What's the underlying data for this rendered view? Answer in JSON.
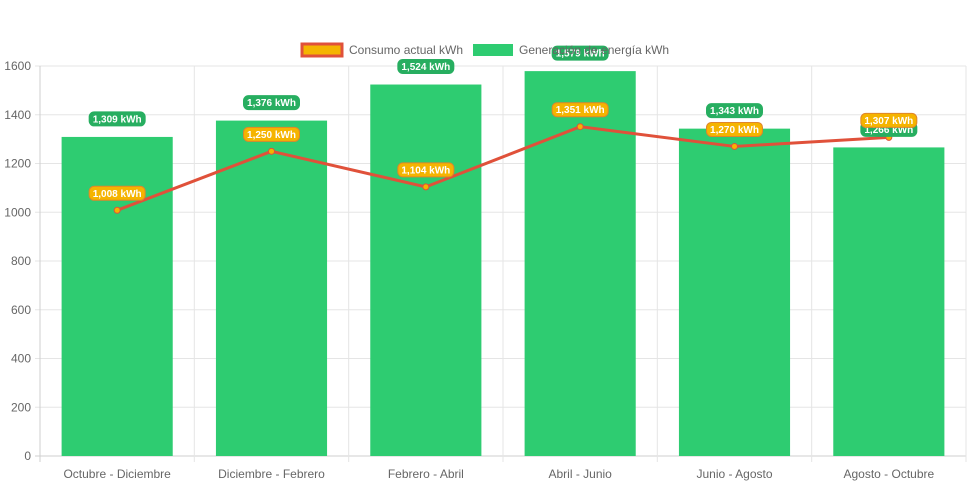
{
  "chart_data": {
    "type": "bar",
    "categories": [
      "Octubre - Diciembre",
      "Diciembre - Febrero",
      "Febrero - Abril",
      "Abril - Junio",
      "Junio - Agosto",
      "Agosto - Octubre"
    ],
    "series": [
      {
        "name": "Consumo actual kWh",
        "type": "line",
        "values": [
          1008,
          1250,
          1104,
          1351,
          1270,
          1307
        ],
        "labels": [
          "1,008 kWh",
          "1,250 kWh",
          "1,104 kWh",
          "1,351 kWh",
          "1,270 kWh",
          "1,307 kWh"
        ],
        "line_color": "#e0513a",
        "point_color": "#f5b400",
        "label_bg": "#f5b400",
        "label_border": "#e0862a"
      },
      {
        "name": "Generación de energía kWh",
        "type": "bar",
        "values": [
          1309,
          1376,
          1524,
          1579,
          1343,
          1266
        ],
        "labels": [
          "1,309 kWh",
          "1,376 kWh",
          "1,524 kWh",
          "1,579 kWh",
          "1,343 kWh",
          "1,266 kWh"
        ],
        "bar_color": "#2ecc71",
        "label_bg": "#27ae60"
      }
    ],
    "ylim": [
      0,
      1600
    ],
    "yticks": [
      "0",
      "200",
      "400",
      "600",
      "800",
      "1000",
      "1200",
      "1400",
      "1600"
    ],
    "grid": true,
    "legend": "top-center",
    "title": "",
    "xlabel": "",
    "ylabel": ""
  }
}
